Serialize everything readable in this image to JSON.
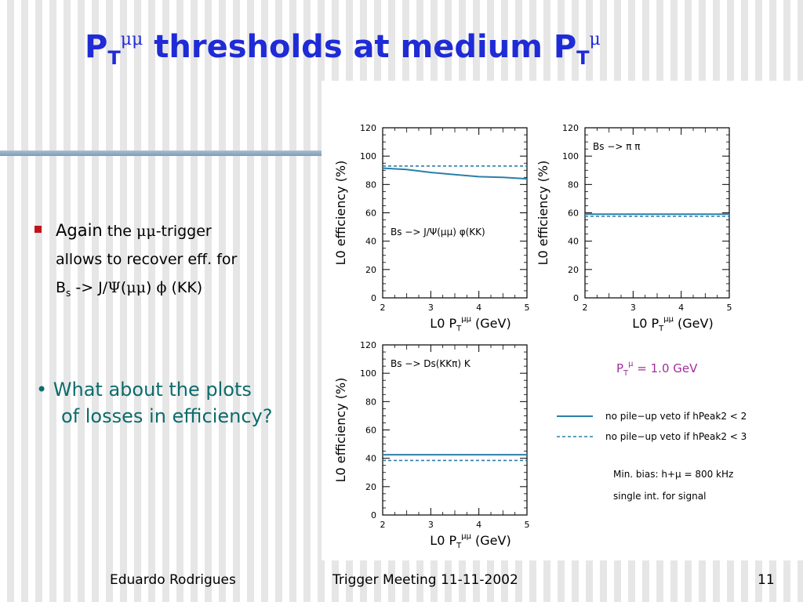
{
  "slide": {
    "title": "thresholds at medium P",
    "title_prefix": "P",
    "title_prefix_sub": "T",
    "title_prefix_sup": "μμ",
    "title_suffix_sub": "T",
    "title_suffix_sup": "μ"
  },
  "bullets": {
    "b1_word1": "Again",
    "b1_word2": "the",
    "b1_mumu": "μμ",
    "b1_trigger": "-trigger",
    "b1_line2": "allows to recover eff. for",
    "b1_B": "B",
    "b1_s": "s",
    "b1_arrow": "-> J/",
    "b1_psi": "Ψ",
    "b1_paren_open": "(",
    "b1_mumu2": "μμ",
    "b1_paren_close": ")",
    "b1_phi": "ϕ",
    "b1_kk": "(KK)",
    "b2_line1": "• What about the plots",
    "b2_line2": "of losses in efficiency?"
  },
  "footer": {
    "author": "Eduardo Rodrigues",
    "meeting": "Trigger Meeting 11-11-2002",
    "page": "11"
  },
  "legend": {
    "threshold": "P",
    "threshold_sub": "T",
    "threshold_sup": "μ",
    "threshold_value": " = 1.0 GeV",
    "solid_label": "no pile−up veto if hPeak2 < 2",
    "dashed_label": "no pile−up veto if hPeak2 < 3",
    "minbias": "Min. bias: h+μ = 800 kHz",
    "single_int": "single int. for signal",
    "accent": "#a0309a",
    "line_color": "#2a7fa8"
  },
  "chart_data": [
    {
      "type": "line",
      "annotation": "Bs −> J/Ψ(μμ) φ(KK)",
      "ylabel": "L0 efficiency (%)",
      "xlabel": "L0 P",
      "xlabel_sub": "T",
      "xlabel_sup": "μμ",
      "xlabel_unit": " (GeV)",
      "xlim": [
        2,
        5
      ],
      "ylim": [
        0,
        120
      ],
      "xticks": [
        2,
        3,
        4,
        5
      ],
      "yticks": [
        0,
        20,
        40,
        60,
        80,
        100,
        120
      ],
      "x": [
        2.0,
        2.5,
        3.0,
        3.5,
        4.0,
        4.5,
        5.0
      ],
      "series": [
        {
          "style": "solid",
          "values": [
            91.5,
            90.5,
            88.5,
            87.0,
            85.5,
            85.0,
            84.0
          ]
        },
        {
          "style": "dashed",
          "values": [
            93.0,
            93.0,
            93.0,
            93.0,
            93.0,
            93.0,
            93.0
          ]
        }
      ]
    },
    {
      "type": "line",
      "annotation": "Bs −> π π",
      "ylabel": "L0 efficiency (%)",
      "xlabel": "L0 P",
      "xlabel_sub": "T",
      "xlabel_sup": "μμ",
      "xlabel_unit": " (GeV)",
      "xlim": [
        2,
        5
      ],
      "ylim": [
        0,
        120
      ],
      "xticks": [
        2,
        3,
        4,
        5
      ],
      "yticks": [
        0,
        20,
        40,
        60,
        80,
        100,
        120
      ],
      "x": [
        2.0,
        3.0,
        4.0,
        5.0
      ],
      "series": [
        {
          "style": "solid",
          "values": [
            59.0,
            59.0,
            59.0,
            59.0
          ]
        },
        {
          "style": "dashed",
          "values": [
            57.5,
            57.5,
            57.5,
            57.5
          ]
        }
      ]
    },
    {
      "type": "line",
      "annotation": "Bs −> Ds(KKπ) K",
      "ylabel": "L0 efficiency (%)",
      "xlabel": "L0 P",
      "xlabel_sub": "T",
      "xlabel_sup": "μμ",
      "xlabel_unit": " (GeV)",
      "xlim": [
        2,
        5
      ],
      "ylim": [
        0,
        120
      ],
      "xticks": [
        2,
        3,
        4,
        5
      ],
      "yticks": [
        0,
        20,
        40,
        60,
        80,
        100,
        120
      ],
      "x": [
        2.0,
        3.0,
        4.0,
        5.0
      ],
      "series": [
        {
          "style": "solid",
          "values": [
            42.5,
            42.5,
            42.5,
            42.5
          ]
        },
        {
          "style": "dashed",
          "values": [
            38.5,
            38.5,
            38.5,
            38.5
          ]
        }
      ]
    }
  ]
}
